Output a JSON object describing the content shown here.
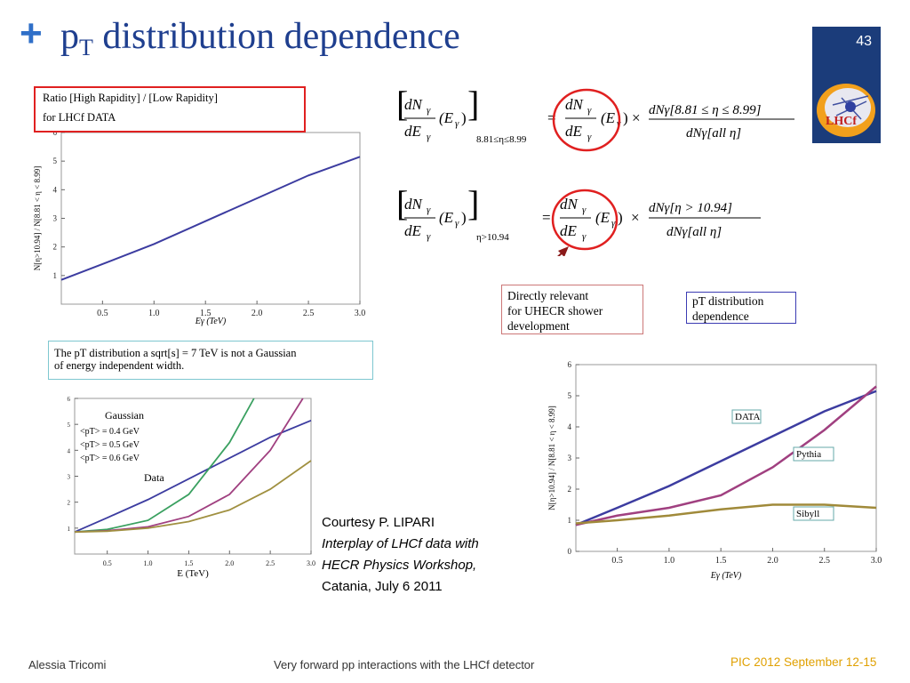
{
  "slide": {
    "bullet": "+",
    "title_main": "p",
    "title_sub": "T",
    "title_rest": " distribution dependence",
    "page_number": "43",
    "logo_text": "LHCf"
  },
  "ratio_box": {
    "line1": "Ratio    [High Rapidity] / [Low Rapidity]",
    "line2": "for LHCf DATA"
  },
  "info_box": {
    "line1": "The pT distribution  a sqrt[s] = 7 TeV is not a Gaussian",
    "line2": "of energy independent  width."
  },
  "annotations": {
    "uhecr": [
      "Directly relevant",
      "for  UHECR shower",
      "development"
    ],
    "pt": [
      "pT distribution",
      "dependence"
    ]
  },
  "equations": {
    "eq1_lhs_sub": "8.81≤η≤8.99",
    "eq1_rhs_num": "dNγ[8.81 ≤ η ≤ 8.99]",
    "eq1_rhs_den": "dNγ[all η]",
    "eq2_lhs_sub": "η>10.94",
    "eq2_rhs_num": "dNγ[η > 10.94]",
    "eq2_rhs_den": "dNγ[all η]"
  },
  "courtesy": {
    "line1": "Courtesy P. LIPARI",
    "line2": "Interplay of LHCf data with",
    "line3": "HECR Physics Workshop,",
    "line4": "Catania, July 6 2011"
  },
  "footer": {
    "author": "Alessia Tricomi",
    "talk": "Very forward pp interactions with the LHCf detector",
    "event": "PIC 2012 September 12-15"
  },
  "colors": {
    "title": "#1f3f8f",
    "accent": "#2f6fc8",
    "red": "#e02020",
    "footer_event": "#e0a000"
  },
  "chart_data": [
    {
      "type": "line",
      "ylabel": "N[η>10.94] / N[8.81 < η < 8.99]",
      "xlabel": "Eγ (TeV)",
      "xlim": [
        0.1,
        3.0
      ],
      "ylim": [
        0,
        6
      ],
      "xticks": [
        "0.5",
        "1.0",
        "1.5",
        "2.0",
        "2.5",
        "3.0"
      ],
      "yticks": [
        "1",
        "2",
        "3",
        "4",
        "5",
        "6"
      ],
      "series": [
        {
          "color": "#3c3ca0",
          "x": [
            0.1,
            0.5,
            1.0,
            1.5,
            2.0,
            2.5,
            3.0
          ],
          "y": [
            0.85,
            1.4,
            2.1,
            2.9,
            3.7,
            4.5,
            5.15
          ]
        }
      ]
    },
    {
      "type": "line",
      "xlabel": "E  (TeV)",
      "xlim": [
        0.1,
        3.0
      ],
      "ylim": [
        0,
        6
      ],
      "xticks": [
        "0.5",
        "1.0",
        "1.5",
        "2.0",
        "2.5",
        "3.0"
      ],
      "yticks": [
        "1",
        "2",
        "3",
        "4",
        "5",
        "6"
      ],
      "legend": [
        "Gaussian",
        "<pT> = 0.4 GeV",
        "<pT> = 0.5 GeV",
        "<pT> = 0.6 GeV"
      ],
      "annotations": [
        "Data"
      ],
      "series": [
        {
          "color": "#3c3ca0",
          "x": [
            0.1,
            0.5,
            1.0,
            1.5,
            2.0,
            2.5,
            3.0
          ],
          "y": [
            0.85,
            1.4,
            2.1,
            2.9,
            3.7,
            4.5,
            5.15
          ]
        },
        {
          "color": "#3aa060",
          "x": [
            0.1,
            0.5,
            1.0,
            1.5,
            2.0,
            2.3
          ],
          "y": [
            0.85,
            0.95,
            1.3,
            2.3,
            4.3,
            6.0
          ]
        },
        {
          "color": "#a04080",
          "x": [
            0.1,
            0.5,
            1.0,
            1.5,
            2.0,
            2.5,
            2.9
          ],
          "y": [
            0.85,
            0.9,
            1.05,
            1.45,
            2.3,
            4.0,
            6.0
          ]
        },
        {
          "color": "#a09040",
          "x": [
            0.1,
            0.5,
            1.0,
            1.5,
            2.0,
            2.5,
            3.0
          ],
          "y": [
            0.85,
            0.88,
            1.0,
            1.25,
            1.7,
            2.5,
            3.6
          ]
        }
      ]
    },
    {
      "type": "line",
      "ylabel": "N[η>10.94] / N[8.81 < η < 8.99]",
      "xlabel": "Eγ (TeV)",
      "xlim": [
        0.1,
        3.0
      ],
      "ylim": [
        0,
        6
      ],
      "xticks": [
        "0.5",
        "1.0",
        "1.5",
        "2.0",
        "2.5",
        "3.0"
      ],
      "yticks": [
        "0",
        "1",
        "2",
        "3",
        "4",
        "5",
        "6"
      ],
      "series": [
        {
          "name": "DATA",
          "color": "#3c3ca0",
          "x": [
            0.1,
            0.5,
            1.0,
            1.5,
            2.0,
            2.5,
            3.0
          ],
          "y": [
            0.85,
            1.4,
            2.1,
            2.9,
            3.7,
            4.5,
            5.15
          ]
        },
        {
          "name": "Pythia",
          "color": "#a04080",
          "x": [
            0.1,
            0.5,
            1.0,
            1.5,
            2.0,
            2.5,
            3.0
          ],
          "y": [
            0.85,
            1.15,
            1.4,
            1.8,
            2.7,
            3.9,
            5.3
          ]
        },
        {
          "name": "Sibyll",
          "color": "#a08a3a",
          "x": [
            0.1,
            0.5,
            1.0,
            1.5,
            2.0,
            2.5,
            3.0
          ],
          "y": [
            0.9,
            1.0,
            1.15,
            1.35,
            1.5,
            1.5,
            1.4
          ]
        }
      ]
    }
  ]
}
